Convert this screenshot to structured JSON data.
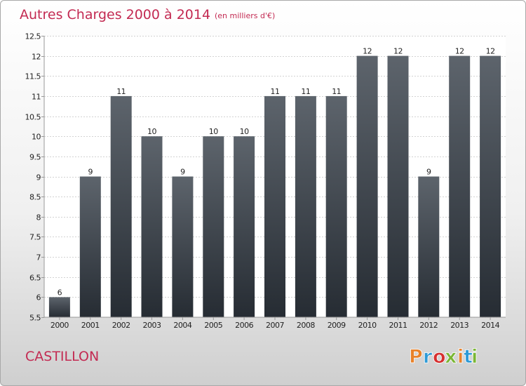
{
  "header": {
    "title": "Autres Charges 2000 à 2014",
    "subtitle": "(en milliers d'€)"
  },
  "footer": {
    "commune": "CASTILLON",
    "brand": "Proxiti",
    "brand_colors": [
      "#e8822a",
      "#2d9ad6",
      "#d62f2f",
      "#7ab634",
      "#e8822a",
      "#2d9ad6",
      "#7ab634"
    ]
  },
  "chart_data": {
    "type": "bar",
    "categories": [
      "2000",
      "2001",
      "2002",
      "2003",
      "2004",
      "2005",
      "2006",
      "2007",
      "2008",
      "2009",
      "2010",
      "2011",
      "2012",
      "2013",
      "2014"
    ],
    "values": [
      6,
      9,
      11,
      10,
      9,
      10,
      10,
      11,
      11,
      11,
      12,
      12,
      9,
      12,
      12
    ],
    "data_labels": [
      "6",
      "9",
      "11",
      "10",
      "9",
      "10",
      "10",
      "11",
      "11",
      "11",
      "12",
      "12",
      "9",
      "12",
      "12"
    ],
    "ylim": [
      5.5,
      12.5
    ],
    "yticks": [
      5.5,
      6,
      6.5,
      7,
      7.5,
      8,
      8.5,
      9,
      9.5,
      10,
      10.5,
      11,
      11.5,
      12,
      12.5
    ],
    "ytick_labels": [
      "5.5",
      "6",
      "6.5",
      "7",
      "7.5",
      "8",
      "8.5",
      "9",
      "9.5",
      "10",
      "10.5",
      "11",
      "11.5",
      "12",
      "12.5"
    ],
    "grid": true,
    "bar_color_top": "#5d646c",
    "bar_color_bottom": "#262c33",
    "title": "Autres Charges 2000 à 2014",
    "xlabel": "",
    "ylabel": ""
  }
}
